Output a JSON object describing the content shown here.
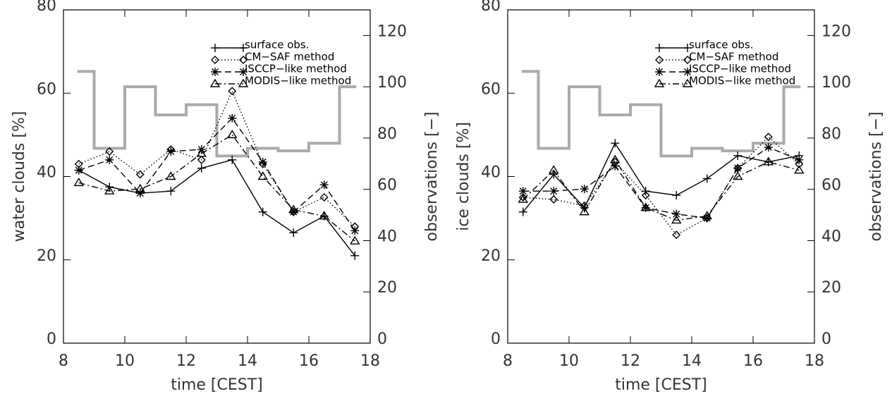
{
  "chart_data": [
    {
      "type": "line",
      "xlabel": "time [CEST]",
      "ylabel": "water clouds [%]",
      "y2label": "observations [−]",
      "xlim": [
        8,
        18
      ],
      "xticks": [
        8,
        10,
        12,
        14,
        16,
        18
      ],
      "ylim": [
        0,
        80
      ],
      "yticks": [
        0,
        20,
        40,
        60,
        80
      ],
      "y2lim": [
        0,
        130
      ],
      "y2ticks": [
        0,
        20,
        40,
        60,
        80,
        100,
        120
      ],
      "legend": "upper right",
      "x": [
        8.5,
        9.5,
        10.5,
        11.5,
        12.5,
        13.5,
        14.5,
        15.5,
        16.5,
        17.5
      ],
      "series": [
        {
          "name": "surface obs.",
          "color": "#000000",
          "linestyle": "solid",
          "marker": "plus",
          "values": [
            41.5,
            37.5,
            36,
            36.5,
            42,
            44,
            31.5,
            26.5,
            30.5,
            21
          ]
        },
        {
          "name": "CM−SAF method",
          "color": "#000000",
          "linestyle": "dotted",
          "marker": "diamond",
          "values": [
            43,
            46,
            40.5,
            46.5,
            44,
            60.5,
            43,
            31.5,
            35,
            28
          ]
        },
        {
          "name": "ISCCP−like method",
          "color": "#000000",
          "linestyle": "dashed",
          "marker": "asterisk",
          "values": [
            41.5,
            44,
            36,
            46,
            46.5,
            54,
            43.5,
            31.5,
            38,
            27
          ]
        },
        {
          "name": "MODIS−like method",
          "color": "#000000",
          "linestyle": "dashdot",
          "marker": "triangle",
          "values": [
            38.5,
            36.5,
            37,
            40,
            45.5,
            50,
            40,
            32,
            30.5,
            24.5
          ]
        },
        {
          "color": "#aaaaaa",
          "linestyle": "steps-mid",
          "axis": "y2",
          "values": [
            106,
            76,
            100,
            89,
            93,
            73,
            76,
            75,
            78,
            100
          ]
        }
      ]
    },
    {
      "type": "line",
      "xlabel": "time [CEST]",
      "ylabel": "ice clouds [%]",
      "y2label": "observations [−]",
      "xlim": [
        8,
        18
      ],
      "xticks": [
        8,
        10,
        12,
        14,
        16,
        18
      ],
      "ylim": [
        0,
        80
      ],
      "yticks": [
        0,
        20,
        40,
        60,
        80
      ],
      "y2lim": [
        0,
        130
      ],
      "y2ticks": [
        0,
        20,
        40,
        60,
        80,
        100,
        120
      ],
      "legend": "upper right",
      "x": [
        8.5,
        9.5,
        10.5,
        11.5,
        12.5,
        13.5,
        14.5,
        15.5,
        16.5,
        17.5
      ],
      "series": [
        {
          "name": "surface obs.",
          "color": "#000000",
          "linestyle": "solid",
          "marker": "plus",
          "values": [
            31.5,
            40.5,
            32.5,
            48,
            36.5,
            35.5,
            39.5,
            45,
            43.5,
            45
          ]
        },
        {
          "name": "CM−SAF method",
          "color": "#000000",
          "linestyle": "dotted",
          "marker": "diamond",
          "values": [
            35,
            34.5,
            33,
            43.5,
            35.5,
            26,
            30,
            42,
            49.5,
            43
          ]
        },
        {
          "name": "ISCCP−like method",
          "color": "#000000",
          "linestyle": "dashed",
          "marker": "asterisk",
          "values": [
            36.5,
            36.5,
            37,
            42.5,
            32.5,
            31,
            30,
            42,
            47,
            44
          ]
        },
        {
          "name": "MODIS−like method",
          "color": "#000000",
          "linestyle": "dashdot",
          "marker": "triangle",
          "values": [
            34.5,
            41.5,
            31.5,
            44,
            32.5,
            29.5,
            30.5,
            40,
            43.5,
            41.5
          ]
        },
        {
          "color": "#aaaaaa",
          "linestyle": "steps-mid",
          "axis": "y2",
          "values": [
            106,
            76,
            100,
            89,
            93,
            73,
            76,
            75,
            78,
            100
          ]
        }
      ]
    }
  ]
}
